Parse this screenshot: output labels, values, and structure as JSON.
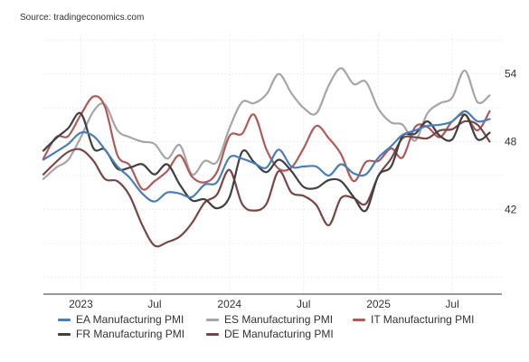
{
  "source": "Source: tradingeconomics.com",
  "chart_data": {
    "type": "line",
    "x_ticks": [
      "2023",
      "Jul",
      "2024",
      "Jul",
      "2025",
      "Jul"
    ],
    "y_ticks": [
      42,
      48,
      54
    ],
    "ylim": [
      34.5,
      57.5
    ],
    "grid": true,
    "legend_position": "bottom",
    "x": [
      "2022-10",
      "2022-11",
      "2022-12",
      "2023-01",
      "2023-02",
      "2023-03",
      "2023-04",
      "2023-05",
      "2023-06",
      "2023-07",
      "2023-08",
      "2023-09",
      "2023-10",
      "2023-11",
      "2023-12",
      "2024-01",
      "2024-02",
      "2024-03",
      "2024-04",
      "2024-05",
      "2024-06",
      "2024-07",
      "2024-08",
      "2024-09",
      "2024-10",
      "2024-11",
      "2024-12",
      "2025-01",
      "2025-02",
      "2025-03",
      "2025-04",
      "2025-05",
      "2025-06",
      "2025-07",
      "2025-08",
      "2025-09",
      "2025-10"
    ],
    "series": [
      {
        "name": "EA Manufacturing PMI",
        "color": "#4a7ebb",
        "values": [
          46.4,
          47.1,
          47.8,
          48.8,
          48.5,
          47.3,
          45.8,
          44.8,
          43.4,
          42.7,
          43.5,
          43.4,
          43.1,
          44.2,
          44.4,
          46.6,
          46.5,
          46.1,
          45.7,
          47.3,
          45.8,
          45.8,
          45.8,
          45.0,
          46.0,
          45.2,
          45.1,
          46.6,
          47.6,
          48.6,
          49.0,
          49.4,
          49.5,
          49.8,
          50.7,
          49.8,
          50.0
        ]
      },
      {
        "name": "ES Manufacturing PMI",
        "color": "#a6a6a6",
        "values": [
          44.7,
          45.7,
          46.4,
          48.4,
          50.7,
          51.3,
          49.0,
          48.4,
          48.0,
          47.8,
          46.5,
          47.7,
          45.1,
          46.3,
          46.2,
          49.2,
          51.5,
          51.4,
          52.2,
          54.0,
          52.3,
          51.0,
          50.5,
          53.0,
          54.5,
          53.1,
          53.3,
          50.9,
          49.7,
          49.5,
          48.1,
          50.5,
          51.4,
          51.9,
          54.3,
          51.5,
          52.1
        ]
      },
      {
        "name": "IT Manufacturing PMI",
        "color": "#b05a5a",
        "values": [
          46.5,
          48.4,
          48.5,
          50.4,
          52.0,
          51.1,
          46.8,
          45.9,
          43.8,
          44.5,
          45.4,
          46.8,
          44.9,
          44.4,
          45.3,
          48.5,
          48.7,
          50.4,
          47.3,
          45.6,
          45.7,
          47.4,
          49.4,
          48.3,
          46.9,
          44.5,
          46.2,
          46.3,
          47.4,
          46.6,
          49.3,
          49.3,
          48.4,
          49.8,
          50.4,
          49.0,
          50.7
        ]
      },
      {
        "name": "FR Manufacturing PMI",
        "color": "#404040",
        "values": [
          47.2,
          48.3,
          49.2,
          50.5,
          47.4,
          47.3,
          45.6,
          45.7,
          46.0,
          45.1,
          46.0,
          44.2,
          42.8,
          42.9,
          42.1,
          43.1,
          47.1,
          46.2,
          45.3,
          46.4,
          45.4,
          44.0,
          43.9,
          44.6,
          44.5,
          43.1,
          41.9,
          45.0,
          45.8,
          48.5,
          48.7,
          49.8,
          48.5,
          48.2,
          50.4,
          48.2,
          48.8
        ]
      },
      {
        "name": "DE Manufacturing PMI",
        "color": "#7a4545",
        "values": [
          45.1,
          46.2,
          47.1,
          47.3,
          46.3,
          44.7,
          44.5,
          43.2,
          40.6,
          38.8,
          39.1,
          39.6,
          40.8,
          42.6,
          43.3,
          45.5,
          42.5,
          41.9,
          42.5,
          45.4,
          43.5,
          43.2,
          42.4,
          40.6,
          43.0,
          43.0,
          42.5,
          45.0,
          46.5,
          48.3,
          48.4,
          48.3,
          49.0,
          49.1,
          49.8,
          49.5,
          48.0
        ]
      }
    ]
  }
}
